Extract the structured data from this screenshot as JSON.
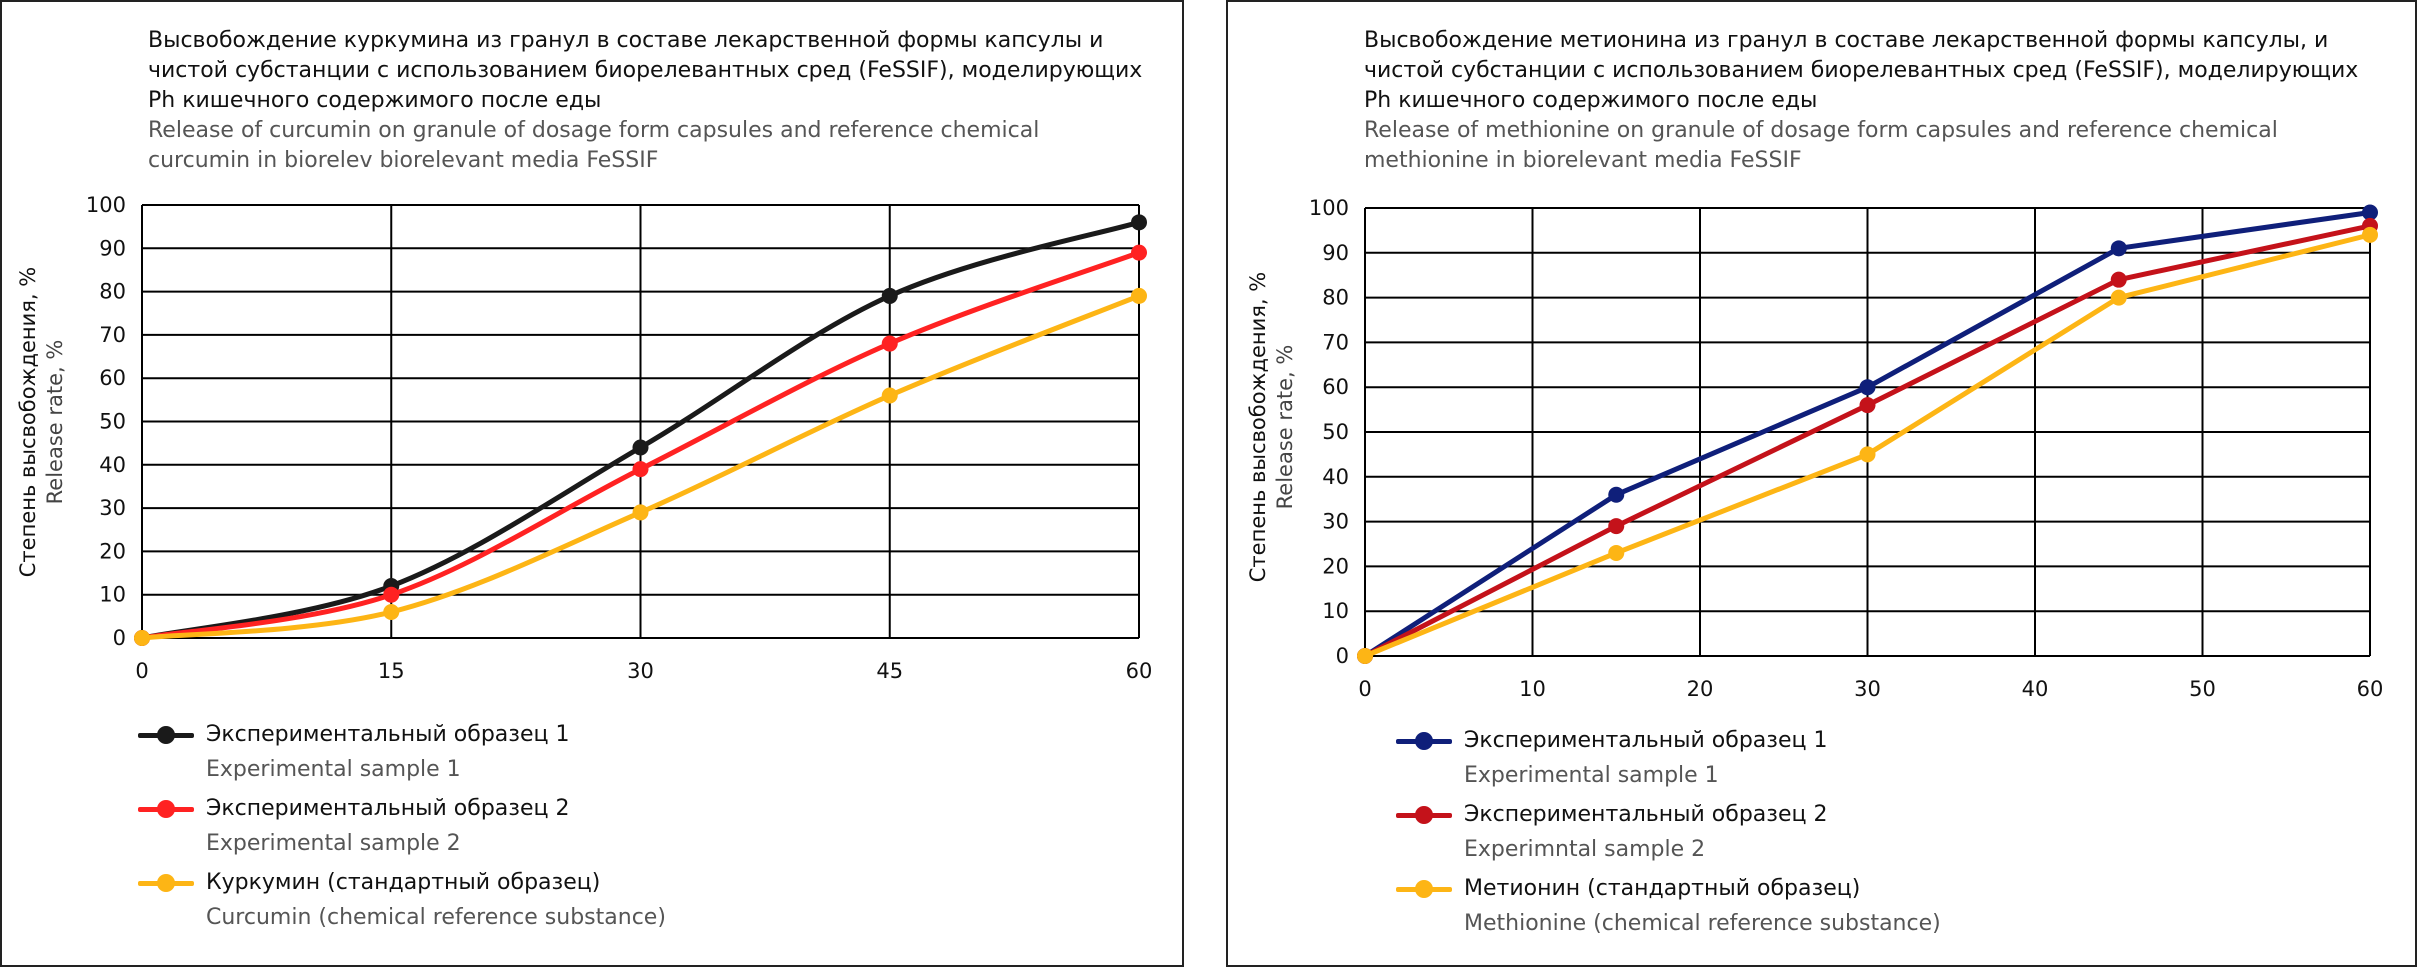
{
  "chart_data": [
    {
      "type": "line",
      "title_ru": "Высвобождение куркумина из гранул в составе лекарственной формы капсулы и чистой субстанции с использованием биорелевантных сред (FeSSIF), моделирующих Ph кишечного содержимого после еды",
      "title_en": "Release of curcumin on granule of dosage form capsules and reference chemical curcumin in biorelev biorelevant media FeSSIF",
      "ylabel_ru": "Степень высвобождения, %",
      "ylabel_en": "Release rate, %",
      "xlabel": "",
      "x": [
        0,
        15,
        30,
        45,
        60
      ],
      "x_ticks": [
        0,
        15,
        30,
        45,
        60
      ],
      "xlim": [
        0,
        60
      ],
      "y_ticks": [
        0,
        10,
        20,
        30,
        40,
        50,
        60,
        70,
        80,
        90,
        100
      ],
      "ylim": [
        0,
        100
      ],
      "grid": true,
      "smooth": true,
      "legend_position": "bottom-left",
      "series": [
        {
          "name_ru": "Экспериментальный образец 1",
          "name_en": "Experimental sample 1",
          "color": "#1a1a1a",
          "values": [
            0,
            12,
            44,
            79,
            96
          ]
        },
        {
          "name_ru": "Экспериментальный образец 2",
          "name_en": "Experimental sample 2",
          "color": "#ff2222",
          "values": [
            0,
            10,
            39,
            68,
            89
          ]
        },
        {
          "name_ru": "Куркумин (стандартный образец)",
          "name_en": "Curcumin (chemical reference substance)",
          "color": "#fdb515",
          "values": [
            0,
            6,
            29,
            56,
            79
          ]
        }
      ]
    },
    {
      "type": "line",
      "title_ru": "Высвобождение метионина из гранул в составе лекарственной формы капсулы, и чистой субстанции с использованием биорелевантных сред (FeSSIF), моделирующих Ph кишечного содержимого после еды",
      "title_en": "Release of methionine on granule of dosage form capsules and reference chemical methionine in biorelevant media FeSSIF",
      "ylabel_ru": "Степень высвобождения, %",
      "ylabel_en": "Release rate, %",
      "xlabel": "",
      "x": [
        0,
        15,
        30,
        45,
        60
      ],
      "x_ticks": [
        0,
        10,
        20,
        30,
        40,
        50,
        60
      ],
      "xlim": [
        0,
        60
      ],
      "y_ticks": [
        0,
        10,
        20,
        30,
        40,
        50,
        60,
        70,
        80,
        90,
        100
      ],
      "ylim": [
        0,
        100
      ],
      "grid": true,
      "smooth": false,
      "legend_position": "bottom-left",
      "series": [
        {
          "name_ru": "Экспериментальный образец 1",
          "name_en": "Experimental sample 1",
          "color": "#0f1f7a",
          "values": [
            0,
            36,
            60,
            91,
            99
          ]
        },
        {
          "name_ru": "Экспериментальный образец 2",
          "name_en": "Experimntal sample 2",
          "color": "#c4121a",
          "values": [
            0,
            29,
            56,
            84,
            96
          ]
        },
        {
          "name_ru": "Метионин (стандартный образец)",
          "name_en": "Methionine (chemical reference substance)",
          "color": "#fdb515",
          "values": [
            0,
            23,
            45,
            80,
            94
          ]
        }
      ]
    }
  ]
}
